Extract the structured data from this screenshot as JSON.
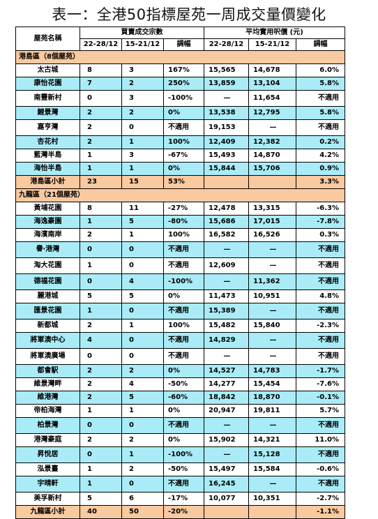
{
  "title": "表一：全港50指標屋苑一周成交量價變化",
  "headers": {
    "estate": "屋苑名稱",
    "txn_group": "買賣成交宗數",
    "price_group": "平均實用呎價 (元)",
    "period1": "22-28/12",
    "period2": "15-21/12",
    "change": "調幅"
  },
  "sections": [
    {
      "label": "港島區（8個屋苑）",
      "rows": [
        {
          "name": "太古城",
          "t1": "8",
          "t2": "3",
          "tc": "167%",
          "p1": "15,565",
          "p2": "14,678",
          "pc": "6.0%"
        },
        {
          "name": "康怡花園",
          "t1": "7",
          "t2": "2",
          "tc": "250%",
          "p1": "13,859",
          "p2": "13,104",
          "pc": "5.8%"
        },
        {
          "name": "南豐新村",
          "t1": "0",
          "t2": "3",
          "tc": "-100%",
          "p1": "—",
          "p2": "11,654",
          "pc": "不適用"
        },
        {
          "name": "鯉景灣",
          "t1": "2",
          "t2": "2",
          "tc": "0%",
          "p1": "13,538",
          "p2": "12,795",
          "pc": "5.8%"
        },
        {
          "name": "嘉亨灣",
          "t1": "2",
          "t2": "0",
          "tc": "不適用",
          "p1": "19,153",
          "p2": "—",
          "pc": "不適用"
        },
        {
          "name": "杏花村",
          "t1": "2",
          "t2": "1",
          "tc": "100%",
          "p1": "12,409",
          "p2": "12,382",
          "pc": "0.2%"
        },
        {
          "name": "藍灣半島",
          "t1": "1",
          "t2": "3",
          "tc": "-67%",
          "p1": "15,493",
          "p2": "14,870",
          "pc": "4.2%"
        },
        {
          "name": "海怡半島",
          "t1": "1",
          "t2": "1",
          "tc": "0%",
          "p1": "15,844",
          "p2": "15,706",
          "pc": "0.9%"
        }
      ],
      "subtotal": {
        "name": "港島區小計",
        "t1": "23",
        "t2": "15",
        "tc": "53%",
        "p1": "",
        "p2": "",
        "pc": "3.3%"
      }
    },
    {
      "label": "九龍區（21個屋苑）",
      "rows": [
        {
          "name": "黃埔花園",
          "t1": "8",
          "t2": "11",
          "tc": "-27%",
          "p1": "12,478",
          "p2": "13,315",
          "pc": "-6.3%"
        },
        {
          "name": "海逸豪園",
          "t1": "1",
          "t2": "5",
          "tc": "-80%",
          "p1": "15,686",
          "p2": "17,015",
          "pc": "-7.8%"
        },
        {
          "name": "海濱南岸",
          "t1": "2",
          "t2": "1",
          "tc": "100%",
          "p1": "16,582",
          "p2": "16,526",
          "pc": "0.3%"
        },
        {
          "name": "譽‧港灣",
          "t1": "0",
          "t2": "0",
          "tc": "不適用",
          "p1": "—",
          "p2": "—",
          "pc": "不適用"
        },
        {
          "name": "淘大花園",
          "t1": "1",
          "t2": "0",
          "tc": "不適用",
          "p1": "12,609",
          "p2": "—",
          "pc": "不適用"
        },
        {
          "name": "德福花園",
          "t1": "0",
          "t2": "4",
          "tc": "-100%",
          "p1": "—",
          "p2": "11,362",
          "pc": "不適用"
        },
        {
          "name": "麗港城",
          "t1": "5",
          "t2": "5",
          "tc": "0%",
          "p1": "11,473",
          "p2": "10,951",
          "pc": "4.8%"
        },
        {
          "name": "匯景花園",
          "t1": "1",
          "t2": "0",
          "tc": "不適用",
          "p1": "15,389",
          "p2": "—",
          "pc": "不適用"
        },
        {
          "name": "新都城",
          "t1": "2",
          "t2": "1",
          "tc": "100%",
          "p1": "15,482",
          "p2": "15,840",
          "pc": "-2.3%"
        },
        {
          "name": "將軍澳中心",
          "t1": "4",
          "t2": "0",
          "tc": "不適用",
          "p1": "14,829",
          "p2": "—",
          "pc": "不適用"
        },
        {
          "name": "將軍澳廣場",
          "t1": "0",
          "t2": "0",
          "tc": "不適用",
          "p1": "—",
          "p2": "—",
          "pc": "不適用"
        },
        {
          "name": "都會駅",
          "t1": "2",
          "t2": "2",
          "tc": "0%",
          "p1": "14,527",
          "p2": "14,783",
          "pc": "-1.7%"
        },
        {
          "name": "維景灣畔",
          "t1": "2",
          "t2": "4",
          "tc": "-50%",
          "p1": "14,277",
          "p2": "15,454",
          "pc": "-7.6%"
        },
        {
          "name": "維港灣",
          "t1": "2",
          "t2": "5",
          "tc": "-60%",
          "p1": "18,842",
          "p2": "18,870",
          "pc": "-0.1%"
        },
        {
          "name": "帝柏海灣",
          "t1": "1",
          "t2": "1",
          "tc": "0%",
          "p1": "20,947",
          "p2": "19,811",
          "pc": "5.7%"
        },
        {
          "name": "柏景灣",
          "t1": "0",
          "t2": "0",
          "tc": "不適用",
          "p1": "—",
          "p2": "—",
          "pc": "不適用"
        },
        {
          "name": "港灣豪庭",
          "t1": "2",
          "t2": "2",
          "tc": "0%",
          "p1": "15,902",
          "p2": "14,321",
          "pc": "11.0%"
        },
        {
          "name": "昇悅居",
          "t1": "0",
          "t2": "1",
          "tc": "-100%",
          "p1": "—",
          "p2": "15,128",
          "pc": "不適用"
        },
        {
          "name": "泓景臺",
          "t1": "1",
          "t2": "2",
          "tc": "-50%",
          "p1": "15,497",
          "p2": "15,584",
          "pc": "-0.6%"
        },
        {
          "name": "宇晴軒",
          "t1": "1",
          "t2": "0",
          "tc": "不適用",
          "p1": "16,245",
          "p2": "—",
          "pc": "不適用"
        },
        {
          "name": "美孚新村",
          "t1": "5",
          "t2": "6",
          "tc": "-17%",
          "p1": "10,077",
          "p2": "10,351",
          "pc": "-2.7%"
        }
      ],
      "subtotal": {
        "name": "九龍區小計",
        "t1": "40",
        "t2": "50",
        "tc": "-20%",
        "p1": "",
        "p2": "",
        "pc": "-1.1%"
      }
    }
  ]
}
